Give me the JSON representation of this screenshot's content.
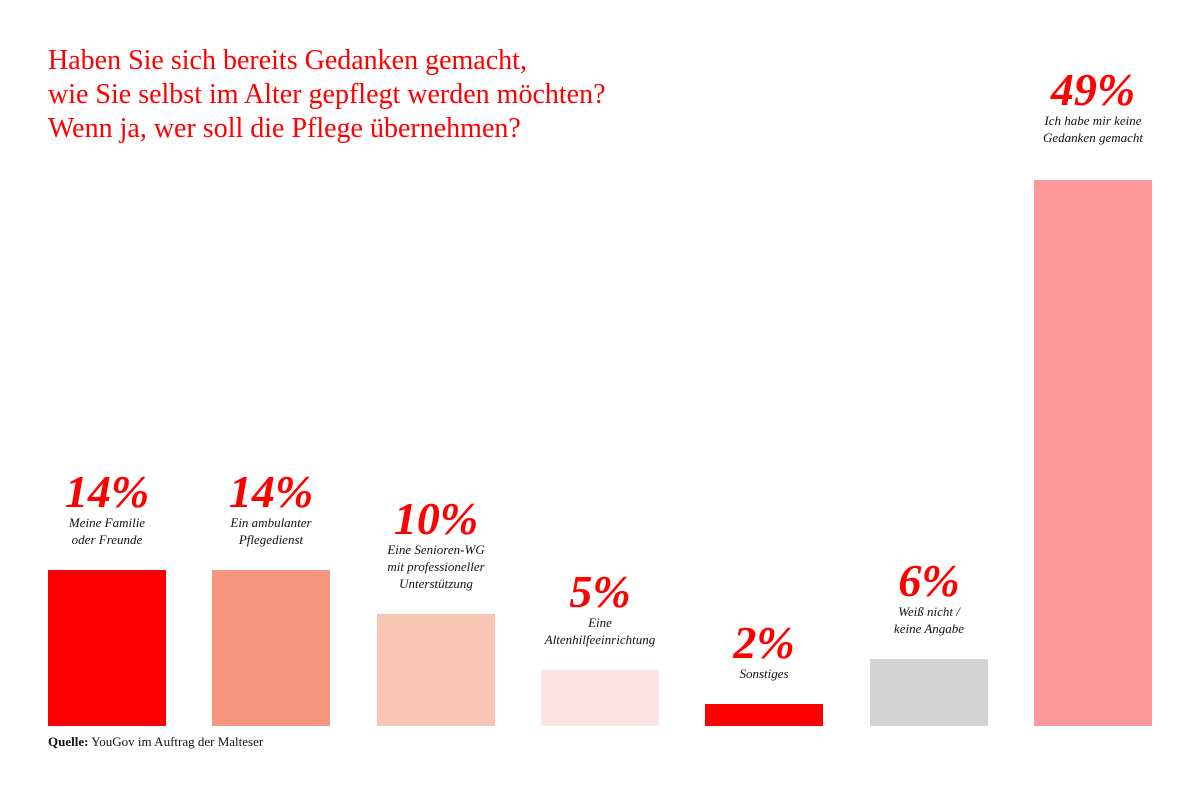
{
  "chart_data": {
    "type": "bar",
    "title": [
      "Haben Sie sich bereits Gedanken gemacht,",
      "wie Sie selbst im Alter gepflegt werden möchten?",
      "Wenn ja, wer soll die Pflege übernehmen?"
    ],
    "unit": "%",
    "categories": [
      [
        "Meine Familie",
        "oder Freunde"
      ],
      [
        "Ein ambulanter",
        "Pflegedienst"
      ],
      [
        "Eine Senioren-WG",
        "mit professioneller",
        "Unterstützung"
      ],
      [
        "Eine",
        "Altenhilfeeinrichtung"
      ],
      [
        "Sonstiges"
      ],
      [
        "Weiß nicht /",
        "keine Angabe"
      ],
      [
        "Ich habe mir keine",
        "Gedanken gemacht"
      ]
    ],
    "values": [
      14,
      14,
      10,
      5,
      2,
      6,
      49
    ],
    "value_labels": [
      "14%",
      "14%",
      "10%",
      "5%",
      "2%",
      "6%",
      "49%"
    ],
    "colors": [
      "#ff0000",
      "#f6957e",
      "#f8c6b3",
      "#fde4e4",
      "#ff0000",
      "#d3d3d3",
      "#fe9999"
    ],
    "grid": false,
    "axes_visible": false
  },
  "source": {
    "label": "Quelle:",
    "text": " YouGov im Auftrag der Malteser"
  }
}
